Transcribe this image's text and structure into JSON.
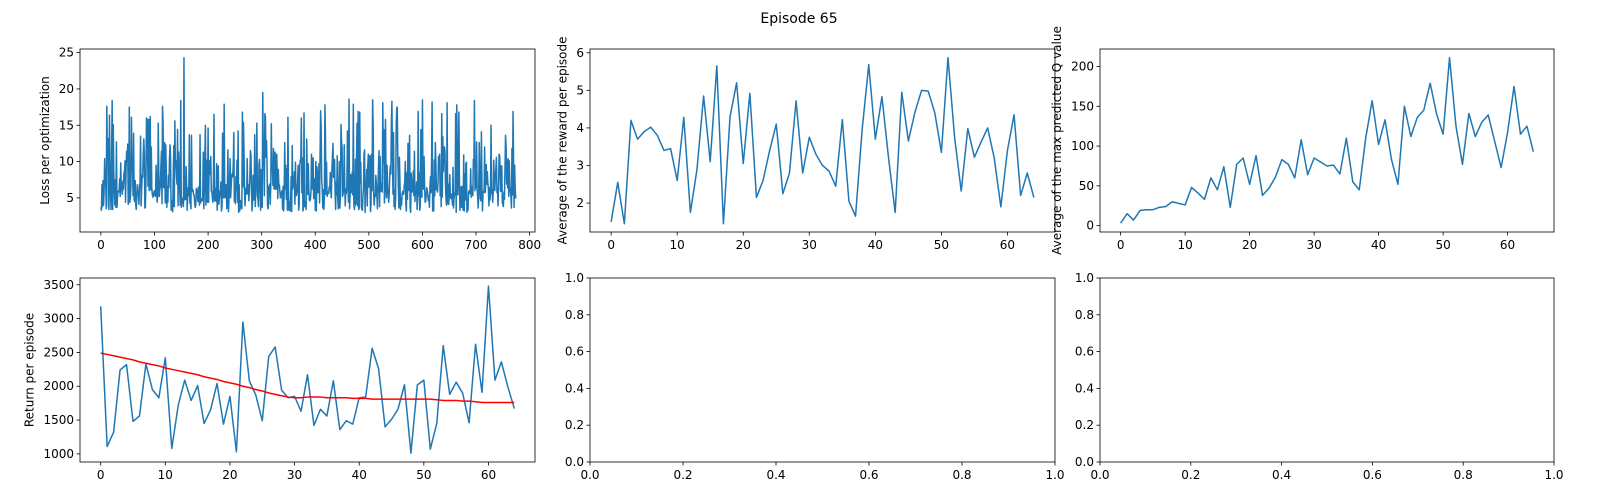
{
  "figure": {
    "suptitle": "Episode 65"
  },
  "colors": {
    "line": "#1f77b4",
    "moving_average": "#ff0000",
    "axes": "#000000"
  },
  "chart_data": [
    {
      "id": "loss",
      "type": "line",
      "ylabel": "Loss per optimization",
      "xlabel": "",
      "xlim": [
        -39,
        810
      ],
      "ylim": [
        0.3,
        25.5
      ],
      "xticks": [
        0,
        100,
        200,
        300,
        400,
        500,
        600,
        700,
        800
      ],
      "yticks": [
        5,
        10,
        15,
        20,
        25
      ],
      "grid": false,
      "generated_series": {
        "n": 775,
        "seed": 65,
        "min": 1.5,
        "max": 18.5,
        "spikes": [
          [
            155,
            24.3
          ],
          [
            302,
            19.5
          ],
          [
            463,
            18.6
          ],
          [
            507,
            18.5
          ],
          [
            553,
            17.5
          ],
          [
            600,
            18.5
          ],
          [
            697,
            18.4
          ]
        ]
      },
      "series": [
        {
          "color": "#1f77b4",
          "values": []
        }
      ]
    },
    {
      "id": "avg-reward",
      "type": "line",
      "ylabel": "Average of the reward per episode",
      "xlabel": "",
      "xlim": [
        -3.2,
        67.2
      ],
      "ylim": [
        1.23,
        6.1
      ],
      "xticks": [
        0,
        10,
        20,
        30,
        40,
        50,
        60
      ],
      "yticks": [
        2,
        3,
        4,
        5,
        6
      ],
      "grid": false,
      "series": [
        {
          "color": "#1f77b4",
          "x_start": 0,
          "values": [
            1.5,
            2.55,
            1.45,
            4.2,
            3.7,
            3.9,
            4.02,
            3.8,
            3.4,
            3.45,
            2.6,
            4.28,
            1.75,
            2.9,
            4.85,
            3.1,
            5.65,
            1.45,
            4.3,
            5.2,
            3.05,
            4.92,
            2.15,
            2.6,
            3.4,
            4.1,
            2.25,
            2.8,
            4.72,
            2.8,
            3.75,
            3.3,
            3.0,
            2.85,
            2.45,
            4.22,
            2.05,
            1.65,
            3.95,
            5.68,
            3.7,
            4.83,
            3.2,
            1.75,
            4.95,
            3.65,
            4.42,
            5.0,
            4.98,
            4.4,
            3.35,
            5.87,
            3.75,
            2.32,
            3.98,
            3.22,
            3.62,
            4.0,
            3.2,
            1.9,
            3.4,
            4.35,
            2.2,
            2.8,
            2.15
          ]
        }
      ]
    },
    {
      "id": "avg-max-q",
      "type": "line",
      "ylabel": "Average of the max predicted Q value",
      "xlabel": "",
      "xlim": [
        -3.2,
        67.2
      ],
      "ylim": [
        -8,
        222
      ],
      "xticks": [
        0,
        10,
        20,
        30,
        40,
        50,
        60
      ],
      "yticks": [
        0,
        50,
        100,
        150,
        200
      ],
      "grid": false,
      "series": [
        {
          "color": "#1f77b4",
          "x_start": 0,
          "values": [
            3,
            15,
            7,
            19,
            20,
            20,
            23,
            24,
            30,
            28,
            26,
            48,
            41,
            33,
            60,
            45,
            74,
            23,
            77,
            85,
            52,
            88,
            38,
            47,
            61,
            83,
            77,
            60,
            108,
            64,
            85,
            80,
            75,
            76,
            65,
            110,
            55,
            45,
            110,
            157,
            102,
            133,
            83,
            52,
            150,
            112,
            136,
            145,
            179,
            140,
            115,
            211,
            125,
            77,
            141,
            112,
            130,
            139,
            106,
            73,
            117,
            175,
            115,
            125,
            93
          ]
        }
      ]
    },
    {
      "id": "return",
      "type": "line",
      "ylabel": "Return per episode",
      "xlabel": "",
      "xlim": [
        -3.2,
        67.2
      ],
      "ylim": [
        880,
        3600
      ],
      "xticks": [
        0,
        10,
        20,
        30,
        40,
        50,
        60
      ],
      "yticks": [
        1000,
        1500,
        2000,
        2500,
        3000,
        3500
      ],
      "grid": false,
      "series": [
        {
          "color": "#1f77b4",
          "x_start": 0,
          "values": [
            3180,
            1110,
            1320,
            2240,
            2320,
            1480,
            1560,
            2330,
            1950,
            1830,
            2420,
            1080,
            1720,
            2090,
            1790,
            2010,
            1450,
            1650,
            2040,
            1440,
            1850,
            1030,
            2950,
            2080,
            1870,
            1490,
            2440,
            2580,
            1940,
            1830,
            1850,
            1630,
            2170,
            1420,
            1660,
            1560,
            2080,
            1360,
            1490,
            1440,
            1830,
            1840,
            2560,
            2260,
            1400,
            1510,
            1660,
            2020,
            1010,
            2020,
            2090,
            1070,
            1450,
            2600,
            1880,
            2060,
            1900,
            1460,
            2620,
            1910,
            3480,
            2090,
            2360,
            1990,
            1670
          ]
        },
        {
          "color": "#ff0000",
          "x_start": 0,
          "values": [
            2490,
            2470,
            2450,
            2430,
            2410,
            2390,
            2360,
            2340,
            2320,
            2300,
            2270,
            2250,
            2230,
            2210,
            2190,
            2170,
            2140,
            2120,
            2100,
            2070,
            2050,
            2030,
            2000,
            1980,
            1950,
            1930,
            1900,
            1880,
            1860,
            1840,
            1830,
            1830,
            1840,
            1840,
            1840,
            1830,
            1830,
            1830,
            1830,
            1820,
            1820,
            1820,
            1810,
            1810,
            1810,
            1810,
            1810,
            1810,
            1810,
            1810,
            1810,
            1810,
            1800,
            1790,
            1790,
            1790,
            1780,
            1780,
            1770,
            1760,
            1760,
            1760,
            1760,
            1760,
            1760
          ]
        }
      ]
    },
    {
      "id": "empty-1",
      "type": "line",
      "ylabel": "",
      "xlabel": "",
      "xlim": [
        0,
        1
      ],
      "ylim": [
        0,
        1
      ],
      "xticks": [
        0.0,
        0.2,
        0.4,
        0.6,
        0.8,
        1.0
      ],
      "yticks": [
        0.0,
        0.2,
        0.4,
        0.6,
        0.8,
        1.0
      ],
      "decimals": 1,
      "grid": false,
      "series": []
    },
    {
      "id": "empty-2",
      "type": "line",
      "ylabel": "",
      "xlabel": "",
      "xlim": [
        0,
        1
      ],
      "ylim": [
        0,
        1
      ],
      "xticks": [
        0.0,
        0.2,
        0.4,
        0.6,
        0.8,
        1.0
      ],
      "yticks": [
        0.0,
        0.2,
        0.4,
        0.6,
        0.8,
        1.0
      ],
      "decimals": 1,
      "grid": false,
      "series": []
    }
  ]
}
